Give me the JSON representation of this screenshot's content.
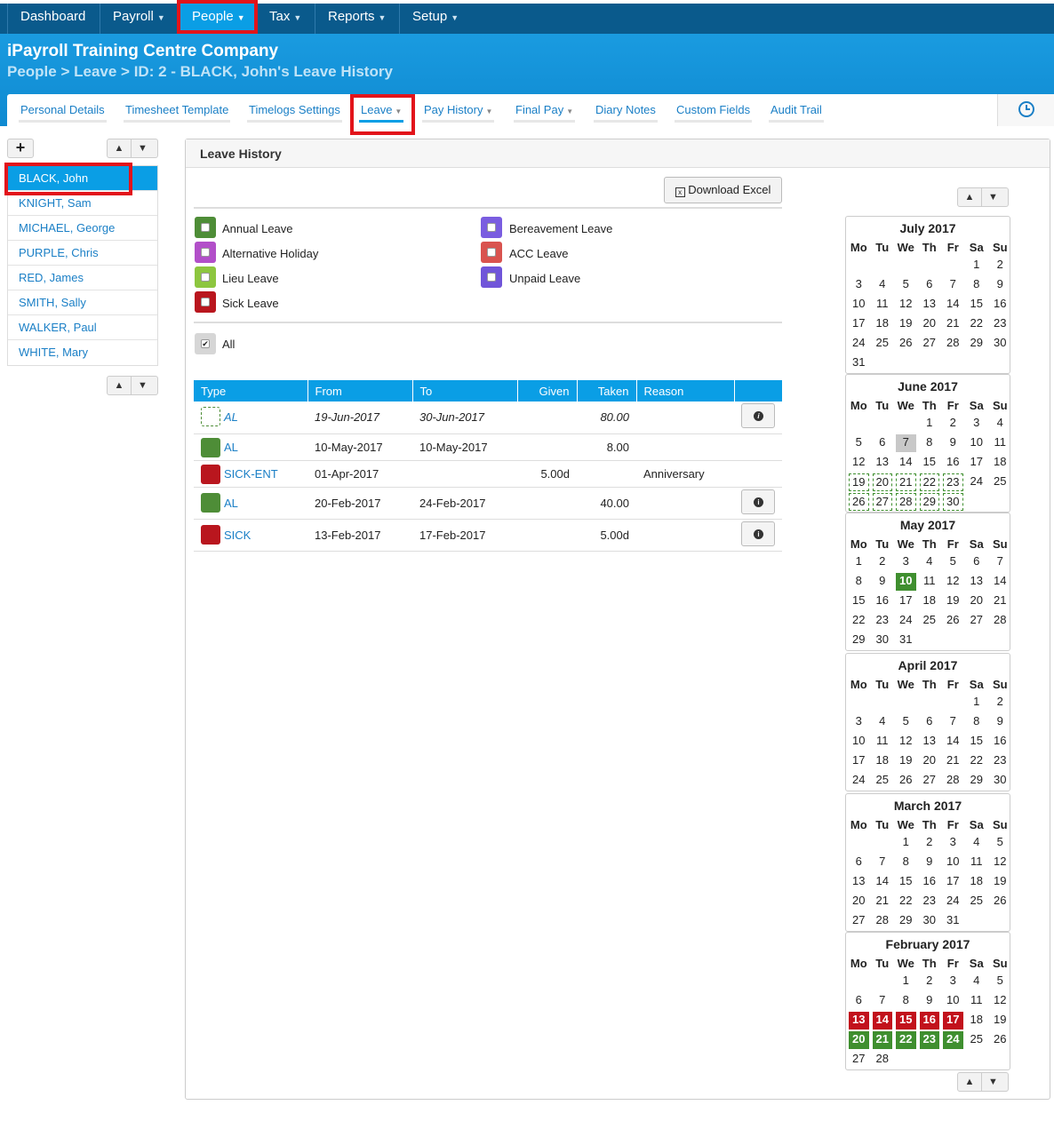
{
  "topnav": {
    "items": [
      {
        "label": "Dashboard",
        "caret": false
      },
      {
        "label": "Payroll",
        "caret": true
      },
      {
        "label": "People",
        "caret": true
      },
      {
        "label": "Tax",
        "caret": true
      },
      {
        "label": "Reports",
        "caret": true
      },
      {
        "label": "Setup",
        "caret": true
      }
    ]
  },
  "header": {
    "company": "iPayroll Training Centre Company",
    "breadcrumb": "People > Leave > ID: 2 - BLACK, John's Leave History"
  },
  "tabs": [
    {
      "label": "Personal Details"
    },
    {
      "label": "Timesheet Template"
    },
    {
      "label": "Timelogs Settings"
    },
    {
      "label": "Leave"
    },
    {
      "label": "Pay History"
    },
    {
      "label": "Final Pay"
    },
    {
      "label": "Diary Notes"
    },
    {
      "label": "Custom Fields"
    },
    {
      "label": "Audit Trail"
    }
  ],
  "sidebar": {
    "add_label": "+",
    "employees": [
      "BLACK, John",
      "KNIGHT, Sam",
      "MICHAEL, George",
      "PURPLE, Chris",
      "RED, James",
      "SMITH, Sally",
      "WALKER, Paul",
      "WHITE, Mary"
    ]
  },
  "panel": {
    "title": "Leave History",
    "download_label": "Download Excel",
    "all_label": "All",
    "legend": [
      {
        "label": "Annual Leave",
        "color": "#4e8d37"
      },
      {
        "label": "Alternative Holiday",
        "color": "#b24fc9"
      },
      {
        "label": "Lieu Leave",
        "color": "#8dc63f"
      },
      {
        "label": "Sick Leave",
        "color": "#b9161e"
      },
      {
        "label": "Bereavement Leave",
        "color": "#7a5de0"
      },
      {
        "label": "ACC Leave",
        "color": "#d9534f"
      },
      {
        "label": "Unpaid Leave",
        "color": "#7055d9"
      }
    ],
    "columns": [
      "Type",
      "From",
      "To",
      "Given",
      "Taken",
      "Reason"
    ],
    "rows": [
      {
        "type": "AL",
        "from": "19-Jun-2017",
        "to": "30-Jun-2017",
        "given": "",
        "taken": "80.00",
        "reason": ""
      },
      {
        "type": "AL",
        "from": "10-May-2017",
        "to": "10-May-2017",
        "given": "",
        "taken": "8.00",
        "reason": ""
      },
      {
        "type": "SICK-ENT",
        "from": "01-Apr-2017",
        "to": "",
        "given": "5.00d",
        "taken": "",
        "reason": "Anniversary"
      },
      {
        "type": "AL",
        "from": "20-Feb-2017",
        "to": "24-Feb-2017",
        "given": "",
        "taken": "40.00",
        "reason": ""
      },
      {
        "type": "SICK",
        "from": "13-Feb-2017",
        "to": "17-Feb-2017",
        "given": "",
        "taken": "5.00d",
        "reason": ""
      }
    ]
  },
  "calendars": {
    "day_headers": [
      "Mo",
      "Tu",
      "We",
      "Th",
      "Fr",
      "Sa",
      "Su"
    ],
    "months": [
      {
        "title": "July 2017"
      },
      {
        "title": "June 2017"
      },
      {
        "title": "May 2017"
      },
      {
        "title": "April 2017"
      },
      {
        "title": "March 2017"
      },
      {
        "title": "February 2017"
      }
    ]
  }
}
